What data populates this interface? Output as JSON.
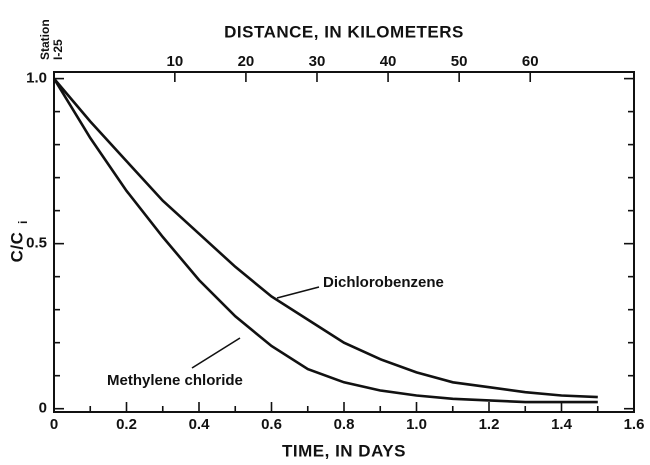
{
  "chart_data": {
    "type": "line",
    "x_label": "TIME, IN DAYS",
    "x2_label": "DISTANCE, IN KILOMETERS",
    "y_label": "C/C",
    "y_label_subscript": "i",
    "station_label": [
      "Station",
      "I-25"
    ],
    "x": [
      0,
      0.1,
      0.2,
      0.3,
      0.4,
      0.5,
      0.6,
      0.7,
      0.8,
      0.9,
      1.0,
      1.1,
      1.2,
      1.3,
      1.4,
      1.5
    ],
    "series": [
      {
        "name": "Dichlorobenzene",
        "color": "#111111",
        "values": [
          1.0,
          0.87,
          0.75,
          0.63,
          0.53,
          0.43,
          0.34,
          0.27,
          0.2,
          0.15,
          0.11,
          0.08,
          0.065,
          0.05,
          0.04,
          0.035
        ]
      },
      {
        "name": "Methylene chloride",
        "color": "#111111",
        "values": [
          1.0,
          0.82,
          0.66,
          0.52,
          0.39,
          0.28,
          0.19,
          0.12,
          0.08,
          0.055,
          0.04,
          0.03,
          0.025,
          0.02,
          0.02,
          0.02
        ]
      }
    ],
    "xlim": [
      0,
      1.6
    ],
    "xticks": [
      0,
      0.2,
      0.4,
      0.6,
      0.8,
      {
        "value": 1,
        "label": "1.0"
      },
      1.2,
      1.4,
      1.6
    ],
    "xminorticks": [
      0.1,
      0.3,
      0.5,
      0.7,
      0.9,
      1.1,
      1.3,
      1.5
    ],
    "x2lim": [
      -7,
      74.6
    ],
    "x2ticks": [
      10,
      20,
      30,
      40,
      50,
      60
    ],
    "ylim": [
      -0.01,
      1.02
    ],
    "yticks": [
      0,
      0.5,
      {
        "value": 1,
        "label": "1.0"
      }
    ],
    "yminorticks": [
      0.1,
      0.2,
      0.3,
      0.4,
      0.6,
      0.7,
      0.8,
      0.9
    ],
    "grid": false
  }
}
